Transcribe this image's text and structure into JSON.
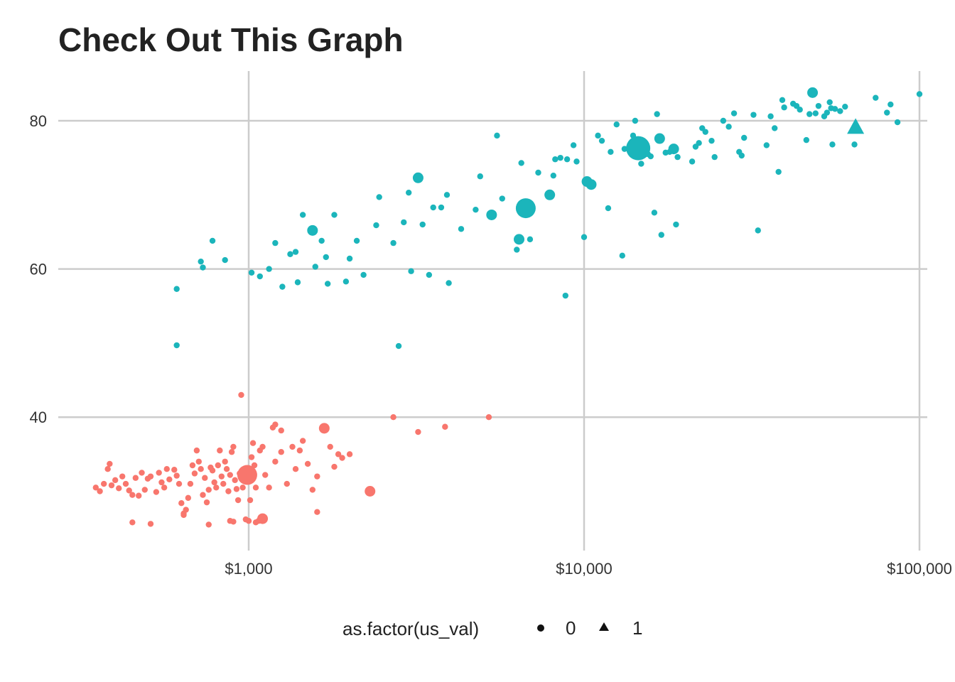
{
  "chart_data": {
    "type": "scatter",
    "title": "Check Out This Graph",
    "x_scale": "log",
    "xlim": [
      300,
      100000
    ],
    "ylim": [
      24,
      86
    ],
    "x_ticks": [
      1000,
      10000,
      100000
    ],
    "x_tick_labels": [
      "$1,000",
      "$10,000",
      "$100,000"
    ],
    "y_ticks": [
      40,
      60,
      80
    ],
    "y_tick_labels": [
      "40",
      "60",
      "80"
    ],
    "grid": true,
    "colors": {
      "low": "#F8766D",
      "high": "#1BB5BB"
    },
    "legend": {
      "title": "as.factor(us_val)",
      "position": "bottom",
      "items": [
        {
          "label": "0",
          "shape": "circle"
        },
        {
          "label": "1",
          "shape": "triangle"
        }
      ]
    },
    "series": [
      {
        "group": "low",
        "points": [
          [
            350,
            30.5
          ],
          [
            360,
            30
          ],
          [
            370,
            31
          ],
          [
            380,
            33
          ],
          [
            385,
            33.7
          ],
          [
            390,
            30.8
          ],
          [
            400,
            31.5
          ],
          [
            410,
            30.4
          ],
          [
            420,
            32
          ],
          [
            430,
            31
          ],
          [
            440,
            30.1
          ],
          [
            450,
            29.5
          ],
          [
            460,
            31.8
          ],
          [
            470,
            29.4
          ],
          [
            480,
            32.5
          ],
          [
            490,
            30.2
          ],
          [
            500,
            31.7
          ],
          [
            510,
            32
          ],
          [
            530,
            29.9
          ],
          [
            540,
            32.5
          ],
          [
            550,
            31.2
          ],
          [
            560,
            30.5
          ],
          [
            570,
            33
          ],
          [
            580,
            31.6
          ],
          [
            600,
            32.9
          ],
          [
            610,
            32.1
          ],
          [
            620,
            31
          ],
          [
            630,
            28.4
          ],
          [
            640,
            26.8
          ],
          [
            650,
            27.5
          ],
          [
            660,
            29.1
          ],
          [
            670,
            31
          ],
          [
            680,
            33.5
          ],
          [
            690,
            32.4
          ],
          [
            700,
            35.5
          ],
          [
            710,
            34
          ],
          [
            720,
            33
          ],
          [
            730,
            29.5
          ],
          [
            740,
            31.8
          ],
          [
            750,
            28.5
          ],
          [
            760,
            30.2
          ],
          [
            770,
            33.2
          ],
          [
            780,
            32.8
          ],
          [
            790,
            31.2
          ],
          [
            800,
            30.5
          ],
          [
            810,
            33.5
          ],
          [
            820,
            35.5
          ],
          [
            830,
            32
          ],
          [
            840,
            31
          ],
          [
            850,
            34
          ],
          [
            860,
            33
          ],
          [
            870,
            30
          ],
          [
            880,
            32.2
          ],
          [
            890,
            35.3
          ],
          [
            900,
            36
          ],
          [
            910,
            31.5
          ],
          [
            920,
            30.3
          ],
          [
            930,
            28.8
          ],
          [
            940,
            32.4
          ],
          [
            950,
            31.8
          ],
          [
            960,
            30.5
          ],
          [
            970,
            33
          ],
          [
            990,
            32.2,
            "L"
          ],
          [
            1000,
            32.5
          ],
          [
            1010,
            28.8
          ],
          [
            1020,
            34.6
          ],
          [
            1030,
            36.5
          ],
          [
            1040,
            33.5
          ],
          [
            1050,
            30.5
          ],
          [
            1080,
            35.5
          ],
          [
            1100,
            36
          ],
          [
            1120,
            32.2
          ],
          [
            1150,
            30.5
          ],
          [
            1200,
            34
          ],
          [
            1250,
            35.3
          ],
          [
            1300,
            31
          ],
          [
            1350,
            36
          ],
          [
            1380,
            33
          ],
          [
            1420,
            35.5
          ],
          [
            1450,
            36.8
          ],
          [
            1500,
            33.7
          ],
          [
            1550,
            30.2
          ],
          [
            1600,
            32
          ],
          [
            1680,
            38.5,
            "M"
          ],
          [
            1750,
            36
          ],
          [
            1800,
            33.3
          ],
          [
            1850,
            35
          ],
          [
            1900,
            34.5
          ],
          [
            2000,
            35
          ],
          [
            2300,
            30,
            "M"
          ],
          [
            2700,
            40
          ],
          [
            3200,
            38
          ],
          [
            3850,
            38.7
          ],
          [
            5200,
            40
          ],
          [
            950,
            43
          ],
          [
            1600,
            27.2
          ],
          [
            1100,
            26.3,
            "M"
          ],
          [
            1070,
            26
          ],
          [
            1050,
            25.8
          ],
          [
            1000,
            26
          ],
          [
            980,
            26.2
          ],
          [
            900,
            25.9
          ],
          [
            880,
            26
          ],
          [
            760,
            25.5
          ],
          [
            510,
            25.6
          ],
          [
            450,
            25.8
          ],
          [
            640,
            27
          ],
          [
            1200,
            39
          ],
          [
            1180,
            38.6
          ],
          [
            1250,
            38.2
          ]
        ]
      },
      {
        "group": "high",
        "points": [
          [
            610,
            57.3
          ],
          [
            610,
            49.7
          ],
          [
            720,
            61
          ],
          [
            730,
            60.2
          ],
          [
            780,
            63.8
          ],
          [
            850,
            61.2
          ],
          [
            1020,
            59.5
          ],
          [
            1080,
            59
          ],
          [
            1150,
            60
          ],
          [
            1200,
            63.5
          ],
          [
            1260,
            57.6
          ],
          [
            1330,
            62
          ],
          [
            1380,
            62.3
          ],
          [
            1400,
            58.2
          ],
          [
            1450,
            67.3
          ],
          [
            1550,
            65.2,
            "M"
          ],
          [
            1580,
            60.3
          ],
          [
            1650,
            63.8
          ],
          [
            1700,
            61.6
          ],
          [
            1720,
            58
          ],
          [
            1800,
            67.3
          ],
          [
            1950,
            58.3
          ],
          [
            2000,
            61.4
          ],
          [
            2100,
            63.8
          ],
          [
            2200,
            59.2
          ],
          [
            2400,
            65.9
          ],
          [
            2450,
            69.7
          ],
          [
            2700,
            63.5
          ],
          [
            2800,
            49.6
          ],
          [
            2900,
            66.3
          ],
          [
            3000,
            70.3
          ],
          [
            3050,
            59.7
          ],
          [
            3200,
            72.3,
            "M"
          ],
          [
            3300,
            66
          ],
          [
            3450,
            59.2
          ],
          [
            3550,
            68.3
          ],
          [
            3750,
            68.3
          ],
          [
            3900,
            70
          ],
          [
            3950,
            58.1
          ],
          [
            4300,
            65.4
          ],
          [
            4750,
            68
          ],
          [
            4900,
            72.5
          ],
          [
            5300,
            67.3,
            "M"
          ],
          [
            5500,
            78
          ],
          [
            5700,
            69.5
          ],
          [
            6300,
            62.6
          ],
          [
            6400,
            64,
            "M"
          ],
          [
            6500,
            74.3
          ],
          [
            6700,
            68.2,
            "L"
          ],
          [
            6900,
            64
          ],
          [
            7300,
            73
          ],
          [
            7900,
            70,
            "M"
          ],
          [
            8100,
            72.6
          ],
          [
            8200,
            74.8
          ],
          [
            8500,
            75
          ],
          [
            8800,
            56.4
          ],
          [
            8900,
            74.8
          ],
          [
            9300,
            76.7
          ],
          [
            9500,
            74.5
          ],
          [
            10000,
            64.3
          ],
          [
            10200,
            71.8,
            "M"
          ],
          [
            10500,
            71.4,
            "M"
          ],
          [
            11000,
            78
          ],
          [
            11300,
            77.3
          ],
          [
            11800,
            68.2
          ],
          [
            12000,
            75.8
          ],
          [
            12500,
            79.5
          ],
          [
            13000,
            61.8
          ],
          [
            13200,
            76.2
          ],
          [
            14000,
            78
          ],
          [
            14200,
            80
          ],
          [
            14500,
            76.3,
            "XL"
          ],
          [
            14800,
            74.2
          ],
          [
            15500,
            75.5
          ],
          [
            15800,
            75.2
          ],
          [
            16200,
            67.6
          ],
          [
            16500,
            80.9
          ],
          [
            16800,
            77.6,
            "M"
          ],
          [
            17000,
            64.6
          ],
          [
            17500,
            75.7
          ],
          [
            18000,
            75.8
          ],
          [
            18500,
            76.2,
            "M"
          ],
          [
            18800,
            66
          ],
          [
            19000,
            75.1
          ],
          [
            21000,
            74.5
          ],
          [
            21500,
            76.5
          ],
          [
            22000,
            77
          ],
          [
            22500,
            79
          ],
          [
            23000,
            78.5
          ],
          [
            24000,
            77.3
          ],
          [
            24500,
            75.1
          ],
          [
            26000,
            80
          ],
          [
            27000,
            79.2
          ],
          [
            28000,
            81
          ],
          [
            29000,
            75.8
          ],
          [
            29500,
            75.3
          ],
          [
            30000,
            77.7
          ],
          [
            32000,
            80.8
          ],
          [
            33000,
            65.2
          ],
          [
            35000,
            76.7
          ],
          [
            36000,
            80.6
          ],
          [
            37000,
            79
          ],
          [
            38000,
            73.1
          ],
          [
            39000,
            82.8
          ],
          [
            39500,
            81.8
          ],
          [
            42000,
            82.3
          ],
          [
            43000,
            82
          ],
          [
            44000,
            81.5
          ],
          [
            46000,
            77.4
          ],
          [
            47000,
            80.9
          ],
          [
            48000,
            83.8,
            "M"
          ],
          [
            49000,
            81
          ],
          [
            50000,
            82
          ],
          [
            52000,
            80.6
          ],
          [
            53000,
            81.1
          ],
          [
            54000,
            82.5
          ],
          [
            54500,
            81.7
          ],
          [
            55000,
            76.8
          ],
          [
            56000,
            81.6
          ],
          [
            58000,
            81.3
          ],
          [
            60000,
            81.9
          ],
          [
            64000,
            76.8
          ],
          [
            74000,
            83.1
          ],
          [
            80000,
            81.1
          ],
          [
            82000,
            82.2
          ],
          [
            86000,
            79.8
          ],
          [
            100000,
            83.6
          ],
          [
            64500,
            79.2,
            "T"
          ]
        ]
      }
    ]
  }
}
